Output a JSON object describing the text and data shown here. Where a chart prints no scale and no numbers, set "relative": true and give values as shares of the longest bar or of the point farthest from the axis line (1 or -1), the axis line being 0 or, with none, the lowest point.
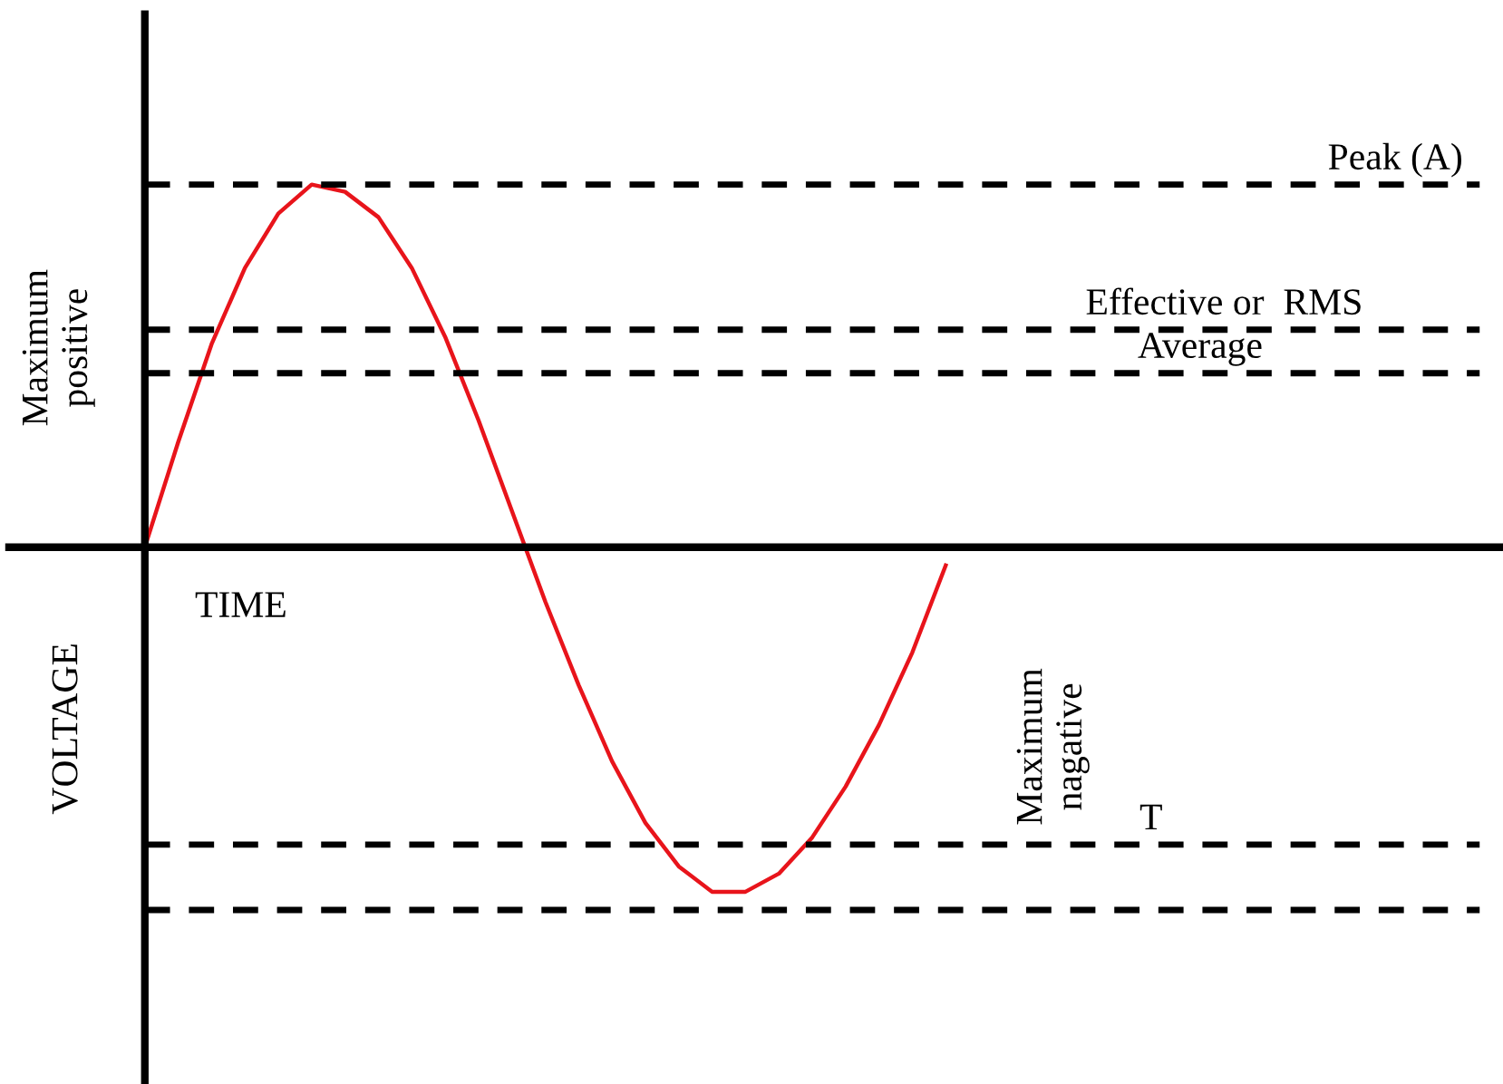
{
  "chart_data": {
    "type": "line",
    "relative": true,
    "xlabel": "TIME",
    "ylabel": "VOLTAGE",
    "legend": false,
    "marker": "none",
    "line_style": "solid",
    "categories": [
      null,
      null,
      null,
      null,
      null,
      null,
      null,
      null,
      null,
      null,
      null,
      null,
      null,
      null,
      null,
      null,
      null,
      null,
      null,
      null,
      null,
      null,
      null,
      null,
      null,
      null,
      null,
      null,
      null,
      null,
      null,
      null,
      null,
      null,
      null,
      null,
      null,
      null,
      null,
      null,
      null
    ],
    "series": [
      {
        "color": "#e8141b",
        "values": [
          0,
          0.29,
          0.56,
          0.77,
          0.92,
          1.0,
          0.98,
          0.91,
          0.77,
          0.58,
          0.35,
          0.1,
          -0.15,
          -0.38,
          -0.59,
          -0.76,
          -0.88,
          -0.95,
          -0.95,
          -0.9,
          -0.8,
          -0.66,
          -0.49,
          -0.29,
          -0.05,
          null,
          null,
          null,
          null,
          null,
          null,
          null,
          null,
          null,
          null,
          null,
          null,
          null,
          null,
          null,
          null
        ]
      }
    ],
    "ref_lines": [
      {
        "axis": "y",
        "value": 1.0,
        "label": "Peak (A)",
        "color": "#000000",
        "line_style": "dashed"
      },
      {
        "axis": "y",
        "value": 0.6,
        "label": "Effective or  RMS",
        "color": "#000000",
        "line_style": "dashed"
      },
      {
        "axis": "y",
        "value": 0.48,
        "label": "Average",
        "color": "#000000",
        "line_style": "dashed"
      },
      {
        "axis": "y",
        "value": -0.82,
        "label": "T",
        "color": "#000000",
        "line_style": "dashed"
      },
      {
        "axis": "y",
        "value": -1.0,
        "color": "#000000",
        "line_style": "dashed"
      }
    ],
    "annotations": [
      "Maximum positive",
      "Maximum nagative"
    ]
  }
}
